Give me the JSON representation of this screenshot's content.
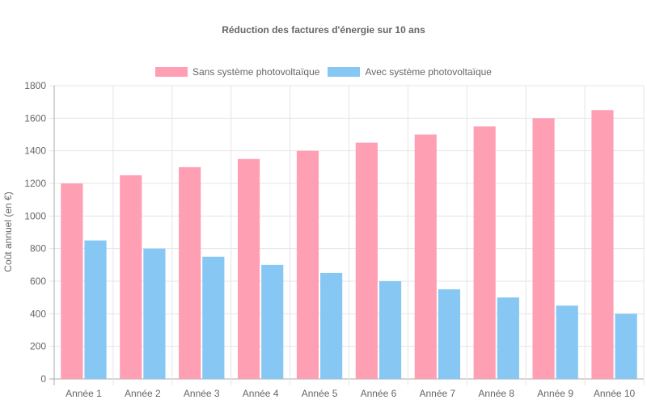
{
  "chart_data": {
    "type": "bar",
    "title": "Réduction des factures d'énergie sur 10 ans",
    "xlabel": "",
    "ylabel": "Coût annuel (en €)",
    "ylim": [
      0,
      1800
    ],
    "yticks": [
      0,
      200,
      400,
      600,
      800,
      1000,
      1200,
      1400,
      1600,
      1800
    ],
    "grid": true,
    "legend_position": "top",
    "categories": [
      "Année 1",
      "Année 2",
      "Année 3",
      "Année 4",
      "Année 5",
      "Année 6",
      "Année 7",
      "Année 8",
      "Année 9",
      "Année 10"
    ],
    "series": [
      {
        "name": "Sans système photovoltaïque",
        "color": "#ff9fb4",
        "border": "#ff6384",
        "values": [
          1200,
          1250,
          1300,
          1350,
          1400,
          1450,
          1500,
          1550,
          1600,
          1650
        ]
      },
      {
        "name": "Avec système photovoltaïque",
        "color": "#86c7f3",
        "border": "#36a2eb",
        "values": [
          850,
          800,
          750,
          700,
          650,
          600,
          550,
          500,
          450,
          400
        ]
      }
    ]
  }
}
